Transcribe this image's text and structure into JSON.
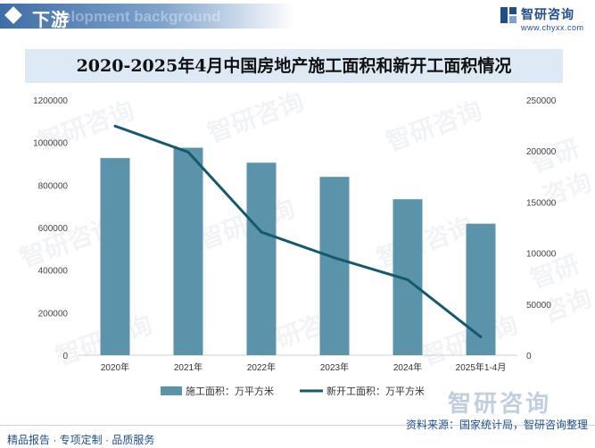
{
  "header": {
    "section_title": "下游",
    "background_word": "elopment background",
    "brand_name": "智研咨询",
    "brand_url": "www.chyxx.com"
  },
  "chart_title": "2020-2025年4月中国房地产施工面积和新开工面积情况",
  "watermark_text": "智研咨询",
  "footer": {
    "left": "精品报告 · 专项定制 · 品质服务",
    "right": "资料来源：国家统计局，智研咨询整理"
  },
  "colors": {
    "bar": "#5b93ab",
    "line": "#145a6e",
    "brand": "#1f4e8c",
    "title_band": "#dde9f5"
  },
  "chart_data": {
    "type": "bar+line",
    "title": "2020-2025年4月中国房地产施工面积和新开工面积情况",
    "categories": [
      "2020年",
      "2021年",
      "2022年",
      "2023年",
      "2024年",
      "2025年1-4月"
    ],
    "series": [
      {
        "name": "施工面积：万平方米",
        "type": "bar",
        "axis": "left",
        "values": [
          926759,
          975387,
          904999,
          838364,
          733247,
          618228
        ]
      },
      {
        "name": "新开工面积：万平方米",
        "type": "line",
        "axis": "right",
        "values": [
          224433,
          198895,
          120587,
          95376,
          73893,
          17836
        ]
      }
    ],
    "y_left": {
      "min": 0,
      "max": 1200000,
      "ticks": [
        "0",
        "200000",
        "400000",
        "600000",
        "800000",
        "1000000",
        "1200000"
      ]
    },
    "y_right": {
      "min": 0,
      "max": 250000,
      "ticks": [
        "0",
        "50000",
        "100000",
        "150000",
        "200000",
        "250000"
      ]
    },
    "grid": false,
    "legend_position": "bottom"
  }
}
